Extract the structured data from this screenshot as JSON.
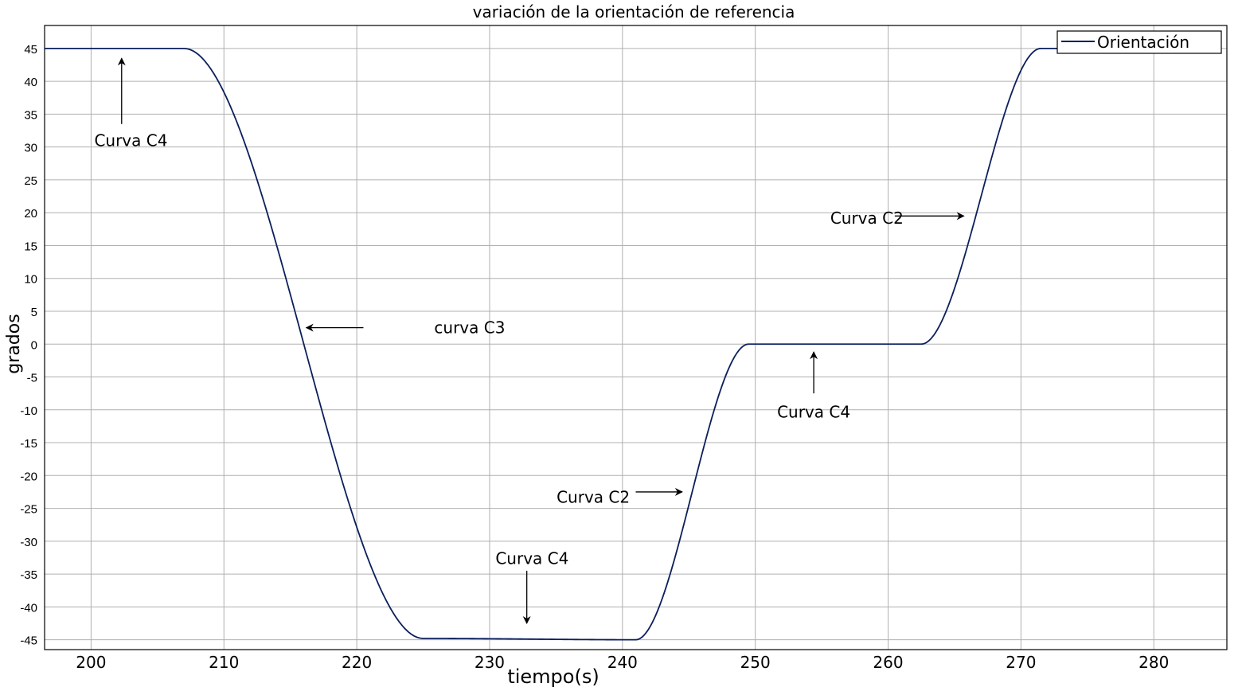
{
  "chart_data": {
    "type": "line",
    "title": "variación de la orientación de referencia",
    "xlabel": "tiempo(s)",
    "ylabel": "grados",
    "xlim": [
      196.5,
      285.5
    ],
    "ylim": [
      -46.5,
      48.5
    ],
    "x_ticks": [
      200,
      210,
      220,
      230,
      240,
      250,
      260,
      270,
      280
    ],
    "y_ticks": [
      45,
      40,
      35,
      30,
      25,
      20,
      15,
      10,
      5,
      0,
      -5,
      -10,
      -15,
      -20,
      -25,
      -30,
      -35,
      -40,
      -45
    ],
    "grid": true,
    "legend_position": "top-right",
    "series": [
      {
        "name": "Orientación",
        "color": "#0b1f5c",
        "segments": [
          {
            "x0": 196.5,
            "x1": 207,
            "y0": 45,
            "y1": 45
          },
          {
            "x0": 207,
            "x1": 225,
            "y0": 45,
            "y1": -44.8
          },
          {
            "x0": 225,
            "x1": 241,
            "y0": -44.8,
            "y1": -45
          },
          {
            "x0": 241,
            "x1": 249.5,
            "y0": -45,
            "y1": 0
          },
          {
            "x0": 249.5,
            "x1": 262.5,
            "y0": 0,
            "y1": 0
          },
          {
            "x0": 262.5,
            "x1": 271.5,
            "y0": 0,
            "y1": 45
          },
          {
            "x0": 271.5,
            "x1": 273.5,
            "y0": 45,
            "y1": 45
          }
        ]
      }
    ],
    "annotations": [
      {
        "text": "Curva C4",
        "tx": 203,
        "ty": 31,
        "ax0": 202.3,
        "ay0": 33.5,
        "ax1": 202.3,
        "ay1": 43.5
      },
      {
        "text": "curva C3",
        "tx": 228.5,
        "ty": 2.5,
        "ax0": 220.5,
        "ay0": 2.5,
        "ax1": 216.2,
        "ay1": 2.5
      },
      {
        "text": "Curva C4",
        "tx": 233.2,
        "ty": -32.6,
        "ax0": 232.8,
        "ay0": -34.5,
        "ax1": 232.8,
        "ay1": -42.5
      },
      {
        "text": "Curva C2",
        "tx": 237.8,
        "ty": -23.3,
        "ax0": 241,
        "ay0": -22.5,
        "ax1": 244.5,
        "ay1": -22.5
      },
      {
        "text": "Curva C4",
        "tx": 254.4,
        "ty": -10.3,
        "ax0": 254.4,
        "ay0": -7.5,
        "ax1": 254.4,
        "ay1": -1.2
      },
      {
        "text": "Curva C2",
        "tx": 258.4,
        "ty": 19.2,
        "ax0": 260.5,
        "ay0": 19.5,
        "ax1": 265.7,
        "ay1": 19.5
      }
    ]
  }
}
